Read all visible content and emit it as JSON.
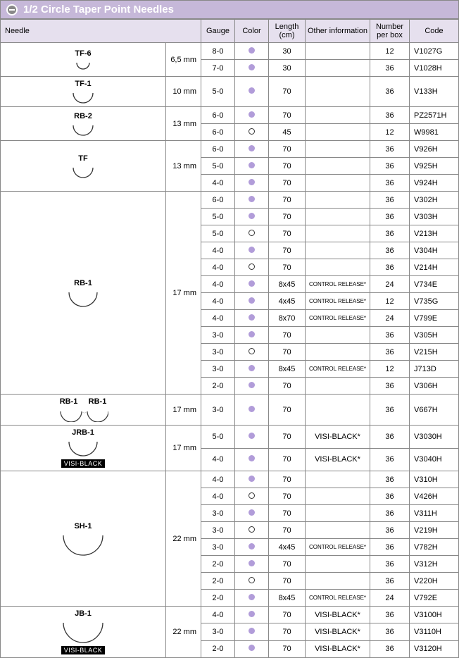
{
  "header": {
    "title": "1/2 Circle Taper Point Needles"
  },
  "columns": {
    "needle": "Needle",
    "gauge": "Gauge",
    "color": "Color",
    "length": "Length (cm)",
    "other": "Other information",
    "num": "Number per box",
    "code": "Code"
  },
  "colors": {
    "header_bg": "#c6b8d9",
    "subheader_bg": "#e6e0ee",
    "border": "#888888",
    "dot_filled": "#b19cd9"
  },
  "groups": [
    {
      "needle": "TF-6",
      "size": "6,5 mm",
      "arc": "tiny",
      "rows": [
        {
          "gauge": "8-0",
          "color": "filled",
          "length": "30",
          "other": "",
          "num": "12",
          "code": "V1027G"
        },
        {
          "gauge": "7-0",
          "color": "filled",
          "length": "30",
          "other": "",
          "num": "36",
          "code": "V1028H"
        }
      ]
    },
    {
      "needle": "TF-1",
      "size": "10 mm",
      "arc": "small",
      "bold": true,
      "rows": [
        {
          "gauge": "5-0",
          "color": "filled",
          "length": "70",
          "other": "",
          "num": "36",
          "code": "V133H"
        }
      ]
    },
    {
      "needle": "RB-2",
      "size": "13 mm",
      "arc": "small",
      "rows": [
        {
          "gauge": "6-0",
          "color": "filled",
          "length": "70",
          "other": "",
          "num": "36",
          "code": "PZ2571H"
        },
        {
          "gauge": "6-0",
          "color": "open",
          "length": "45",
          "other": "",
          "num": "12",
          "code": "W9981"
        }
      ]
    },
    {
      "needle": "TF",
      "size": "13 mm",
      "arc": "small",
      "rows": [
        {
          "gauge": "6-0",
          "color": "filled",
          "length": "70",
          "other": "",
          "num": "36",
          "code": "V926H"
        },
        {
          "gauge": "5-0",
          "color": "filled",
          "length": "70",
          "other": "",
          "num": "36",
          "code": "V925H"
        },
        {
          "gauge": "4-0",
          "color": "filled",
          "length": "70",
          "other": "",
          "num": "36",
          "code": "V924H"
        }
      ]
    },
    {
      "needle": "RB-1",
      "size": "17 mm",
      "arc": "medium",
      "rows": [
        {
          "gauge": "6-0",
          "color": "filled",
          "length": "70",
          "other": "",
          "num": "36",
          "code": "V302H"
        },
        {
          "gauge": "5-0",
          "color": "filled",
          "length": "70",
          "other": "",
          "num": "36",
          "code": "V303H"
        },
        {
          "gauge": "5-0",
          "color": "open",
          "length": "70",
          "other": "",
          "num": "36",
          "code": "V213H"
        },
        {
          "gauge": "4-0",
          "color": "filled",
          "length": "70",
          "other": "",
          "num": "36",
          "code": "V304H"
        },
        {
          "gauge": "4-0",
          "color": "open",
          "length": "70",
          "other": "",
          "num": "36",
          "code": "V214H"
        },
        {
          "gauge": "4-0",
          "color": "filled",
          "length": "8x45",
          "other": "CONTROL RELEASE*",
          "other_small": true,
          "num": "24",
          "code": "V734E"
        },
        {
          "gauge": "4-0",
          "color": "filled",
          "length": "4x45",
          "other": "CONTROL RELEASE*",
          "other_small": true,
          "num": "12",
          "code": "V735G"
        },
        {
          "gauge": "4-0",
          "color": "filled",
          "length": "8x70",
          "other": "CONTROL RELEASE*",
          "other_small": true,
          "num": "24",
          "code": "V799E"
        },
        {
          "gauge": "3-0",
          "color": "filled",
          "length": "70",
          "other": "",
          "num": "36",
          "code": "V305H"
        },
        {
          "gauge": "3-0",
          "color": "open",
          "length": "70",
          "other": "",
          "num": "36",
          "code": "V215H"
        },
        {
          "gauge": "3-0",
          "color": "filled",
          "length": "8x45",
          "other": "CONTROL RELEASE*",
          "other_small": true,
          "num": "12",
          "code": "J713D"
        },
        {
          "gauge": "2-0",
          "color": "filled",
          "length": "70",
          "other": "",
          "num": "36",
          "code": "V306H"
        }
      ]
    },
    {
      "needle": "RB-1",
      "needle2": "RB-1",
      "size": "17 mm",
      "arc": "double",
      "rows": [
        {
          "gauge": "3-0",
          "color": "filled",
          "length": "70",
          "other": "",
          "num": "36",
          "code": "V667H"
        }
      ]
    },
    {
      "needle": "JRB-1",
      "size": "17 mm",
      "arc": "medium",
      "visiblack": true,
      "rows": [
        {
          "gauge": "5-0",
          "color": "filled",
          "length": "70",
          "other": "VISI-BLACK*",
          "num": "36",
          "code": "V3030H"
        },
        {
          "gauge": "4-0",
          "color": "filled",
          "length": "70",
          "other": "VISI-BLACK*",
          "num": "36",
          "code": "V3040H"
        }
      ]
    },
    {
      "needle": "SH-1",
      "size": "22 mm",
      "arc": "large",
      "rows": [
        {
          "gauge": "4-0",
          "color": "filled",
          "length": "70",
          "other": "",
          "num": "36",
          "code": "V310H"
        },
        {
          "gauge": "4-0",
          "color": "open",
          "length": "70",
          "other": "",
          "num": "36",
          "code": "V426H"
        },
        {
          "gauge": "3-0",
          "color": "filled",
          "length": "70",
          "other": "",
          "num": "36",
          "code": "V311H"
        },
        {
          "gauge": "3-0",
          "color": "open",
          "length": "70",
          "other": "",
          "num": "36",
          "code": "V219H"
        },
        {
          "gauge": "3-0",
          "color": "filled",
          "length": "4x45",
          "other": "CONTROL RELEASE*",
          "other_small": true,
          "num": "36",
          "code": "V782H"
        },
        {
          "gauge": "2-0",
          "color": "filled",
          "length": "70",
          "other": "",
          "num": "36",
          "code": "V312H"
        },
        {
          "gauge": "2-0",
          "color": "open",
          "length": "70",
          "other": "",
          "num": "36",
          "code": "V220H"
        },
        {
          "gauge": "2-0",
          "color": "filled",
          "length": "8x45",
          "other": "CONTROL RELEASE*",
          "other_small": true,
          "num": "24",
          "code": "V792E"
        }
      ]
    },
    {
      "needle": "JB-1",
      "size": "22 mm",
      "arc": "large",
      "visiblack": true,
      "rows": [
        {
          "gauge": "4-0",
          "color": "filled",
          "length": "70",
          "other": "VISI-BLACK*",
          "num": "36",
          "code": "V3100H"
        },
        {
          "gauge": "3-0",
          "color": "filled",
          "length": "70",
          "other": "VISI-BLACK*",
          "num": "36",
          "code": "V3110H"
        },
        {
          "gauge": "2-0",
          "color": "filled",
          "length": "70",
          "other": "VISI-BLACK*",
          "num": "36",
          "code": "V3120H"
        }
      ]
    }
  ]
}
